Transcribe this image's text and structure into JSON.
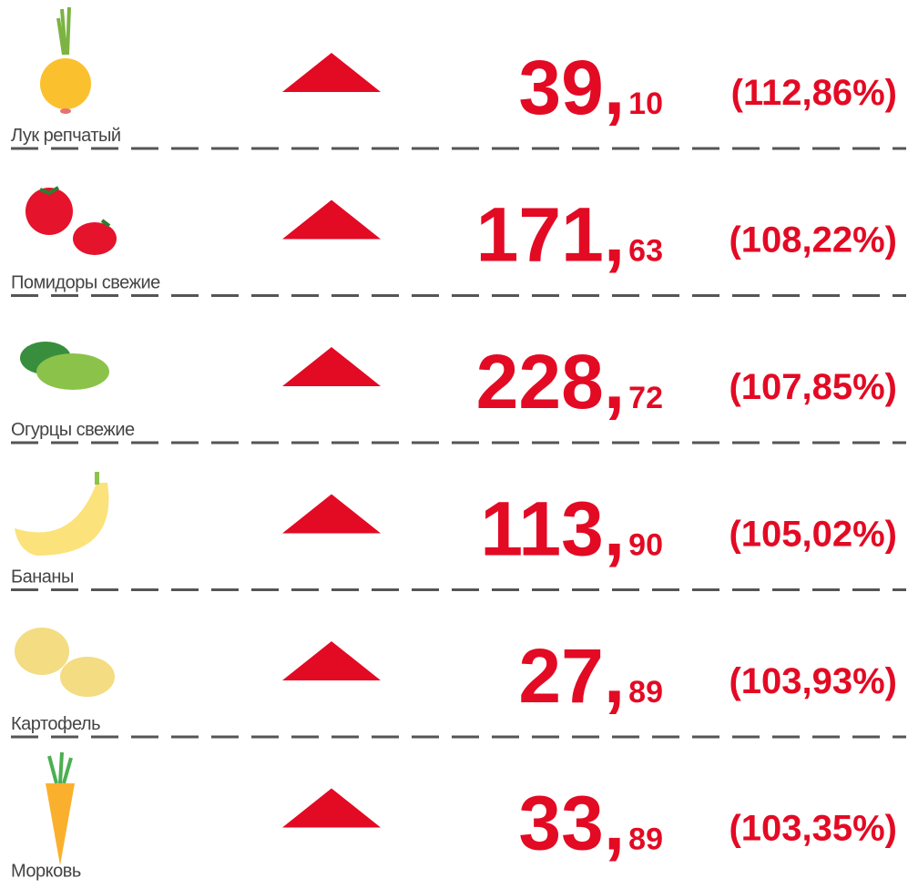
{
  "items": [
    {
      "label": "Лук репчатый",
      "whole": "39,",
      "fraction": "10",
      "change": "(112,86%)"
    },
    {
      "label": "Помидоры свежие",
      "whole": "171,",
      "fraction": "63",
      "change": "(108,22%)"
    },
    {
      "label": "Огурцы свежие",
      "whole": "228,",
      "fraction": "72",
      "change": "(107,85%)"
    },
    {
      "label": "Бананы",
      "whole": "113,",
      "fraction": "90",
      "change": "(105,02%)"
    },
    {
      "label": "Картофель",
      "whole": "27,",
      "fraction": "89",
      "change": "(103,93%)"
    },
    {
      "label": "Морковь",
      "whole": "33,",
      "fraction": "89",
      "change": "(103,35%)"
    }
  ]
}
